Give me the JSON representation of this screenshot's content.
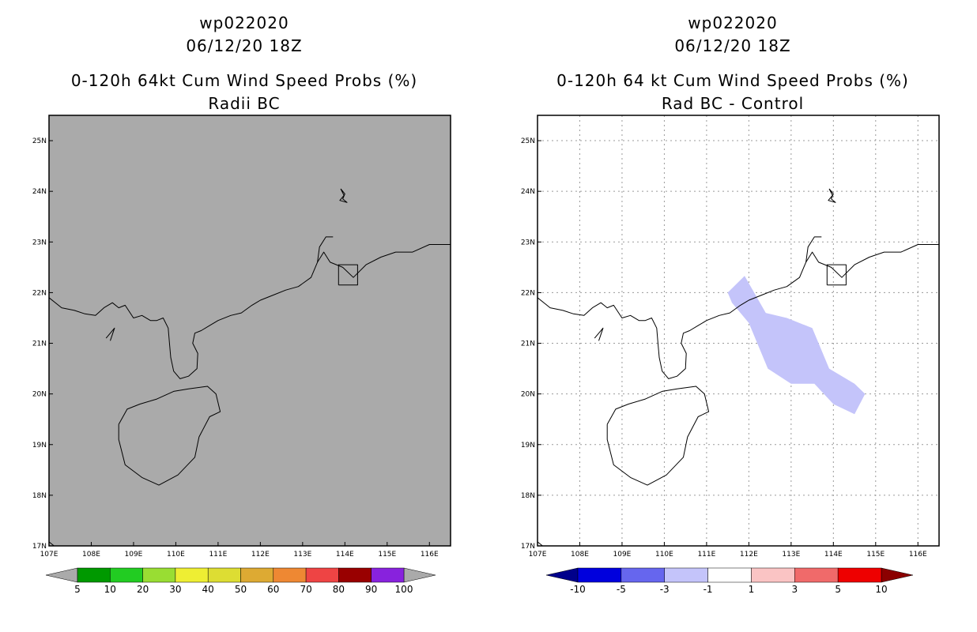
{
  "figure": {
    "panels": [
      {
        "title_line1": "wp022020",
        "title_line2": "06/12/20 18Z",
        "title_line3": "0-120h 64kt Cum Wind Speed Probs (%)",
        "title_line4": "Radii BC",
        "background": "#aaaaaa"
      },
      {
        "title_line1": "wp022020",
        "title_line2": "06/12/20 18Z",
        "title_line3": "0-120h 64 kt Cum Wind Speed Probs (%)",
        "title_line4": "Rad BC - Control",
        "background": "#ffffff"
      }
    ]
  },
  "chart_data": [
    {
      "type": "heatmap",
      "title": "0-120h 64kt Cum Wind Speed Probs (%) - Radii BC",
      "lon_range": [
        107,
        116.5
      ],
      "lat_range": [
        17,
        25.5
      ],
      "x_ticks": [
        107,
        108,
        109,
        110,
        111,
        112,
        113,
        114,
        115,
        116
      ],
      "x_tick_labels": [
        "107E",
        "108E",
        "109E",
        "110E",
        "111E",
        "112E",
        "113E",
        "114E",
        "115E",
        "116E"
      ],
      "y_ticks": [
        17,
        18,
        19,
        20,
        21,
        22,
        23,
        24,
        25
      ],
      "y_tick_labels": [
        "17N",
        "18N",
        "19N",
        "20N",
        "21N",
        "22N",
        "23N",
        "24N",
        "25N"
      ],
      "grid": false,
      "field_polygons": [],
      "colorbar": {
        "labels": [
          "5",
          "10",
          "20",
          "30",
          "40",
          "50",
          "60",
          "70",
          "80",
          "90",
          "100"
        ],
        "colors": [
          "#009900",
          "#22cc22",
          "#99dd33",
          "#eeee33",
          "#dddd33",
          "#ddaa33",
          "#ee8833",
          "#ee4444",
          "#990000",
          "#8822dd"
        ],
        "arrow_left": "#aaaaaa",
        "arrow_right": "#aaaaaa"
      }
    },
    {
      "type": "heatmap",
      "title": "0-120h 64 kt Cum Wind Speed Probs (%) - Rad BC - Control",
      "lon_range": [
        107,
        116.5
      ],
      "lat_range": [
        17,
        25.5
      ],
      "x_ticks": [
        107,
        108,
        109,
        110,
        111,
        112,
        113,
        114,
        115,
        116
      ],
      "x_tick_labels": [
        "107E",
        "108E",
        "109E",
        "110E",
        "111E",
        "112E",
        "113E",
        "114E",
        "115E",
        "116E"
      ],
      "y_ticks": [
        17,
        18,
        19,
        20,
        21,
        22,
        23,
        24,
        25
      ],
      "y_tick_labels": [
        "17N",
        "18N",
        "19N",
        "20N",
        "21N",
        "22N",
        "23N",
        "24N",
        "25N"
      ],
      "grid": true,
      "field_polygons": [
        {
          "category": "-3 to -1",
          "color": "#c4c4fa",
          "points": [
            [
              111.5,
              22.0
            ],
            [
              111.9,
              22.33
            ],
            [
              112.4,
              21.6
            ],
            [
              112.9,
              21.5
            ],
            [
              113.5,
              21.3
            ],
            [
              113.9,
              20.5
            ],
            [
              114.5,
              20.2
            ],
            [
              114.75,
              20.0
            ],
            [
              114.5,
              19.6
            ],
            [
              114.0,
              19.8
            ],
            [
              113.55,
              20.2
            ],
            [
              113.0,
              20.2
            ],
            [
              112.45,
              20.5
            ],
            [
              112.0,
              21.4
            ],
            [
              111.6,
              21.8
            ]
          ]
        }
      ],
      "colorbar": {
        "labels": [
          "-10",
          "-5",
          "-3",
          "-1",
          "1",
          "3",
          "5",
          "10"
        ],
        "colors": [
          "#0000dd",
          "#6666ee",
          "#c4c4fa",
          "#ffffff",
          "#fac4c4",
          "#f06a6a",
          "#ee0000"
        ],
        "arrow_left": "#00008b",
        "arrow_right": "#8b0000"
      }
    }
  ]
}
